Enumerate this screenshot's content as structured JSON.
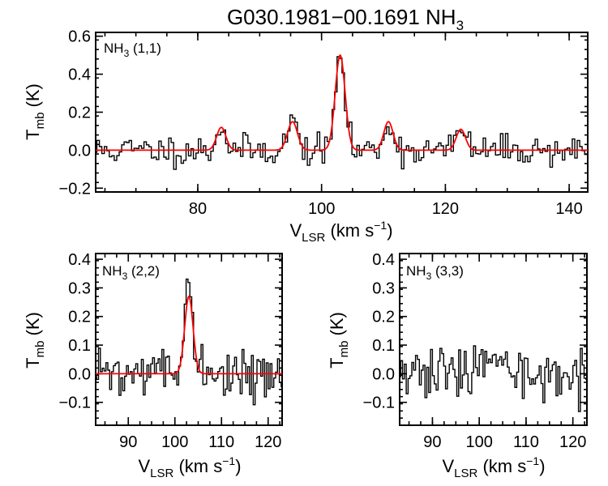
{
  "chart_data": {
    "title": "G030.1981−00.1691 NH",
    "title_sub": "3",
    "panels": [
      {
        "id": "p11",
        "type": "line",
        "label_main": "NH",
        "label_sub": "3",
        "label_rest": " (1,1)",
        "ylabel_main": "T",
        "ylabel_sub": "mb",
        "ylabel_rest": " (K)",
        "xlabel_main": "V",
        "xlabel_sub": "LSR",
        "xlabel_rest": " (km s",
        "xlabel_sup": "−1",
        "xlabel_end": ")",
        "xlim": [
          63.5,
          143
        ],
        "ylim": [
          -0.22,
          0.62
        ],
        "xticks": [
          80,
          100,
          120,
          140
        ],
        "xtick_labels": [
          "80",
          "100",
          "120",
          "140"
        ],
        "yticks": [
          -0.2,
          0.0,
          0.2,
          0.4,
          0.6
        ],
        "ytick_labels": [
          "−0.2",
          "0.0",
          "0.2",
          "0.4",
          "0.6"
        ],
        "spectrum": {
          "x_start": 63.5,
          "x_step": 0.4,
          "x_end": 143,
          "noise_rms": 0.04,
          "seed": 11,
          "components": [
            {
              "center": 83.8,
              "amp": 0.13,
              "sigma": 0.7
            },
            {
              "center": 95.3,
              "amp": 0.16,
              "sigma": 0.75
            },
            {
              "center": 103.0,
              "amp": 0.51,
              "sigma": 0.75
            },
            {
              "center": 110.8,
              "amp": 0.15,
              "sigma": 0.7
            },
            {
              "center": 122.5,
              "amp": 0.12,
              "sigma": 0.7
            }
          ]
        },
        "fit": {
          "components": [
            {
              "center": 83.8,
              "amp": 0.12,
              "sigma": 0.75
            },
            {
              "center": 95.3,
              "amp": 0.15,
              "sigma": 0.8
            },
            {
              "center": 103.0,
              "amp": 0.5,
              "sigma": 0.8
            },
            {
              "center": 110.8,
              "amp": 0.15,
              "sigma": 0.75
            },
            {
              "center": 122.5,
              "amp": 0.11,
              "sigma": 0.75
            }
          ]
        }
      },
      {
        "id": "p22",
        "type": "line",
        "label_main": "NH",
        "label_sub": "3",
        "label_rest": " (2,2)",
        "ylabel_main": "T",
        "ylabel_sub": "mb",
        "ylabel_rest": " (K)",
        "xlabel_main": "V",
        "xlabel_sub": "LSR",
        "xlabel_rest": " (km s",
        "xlabel_sup": "−1",
        "xlabel_end": ")",
        "xlim": [
          83,
          123
        ],
        "ylim": [
          -0.18,
          0.42
        ],
        "xticks": [
          90,
          100,
          110,
          120
        ],
        "xtick_labels": [
          "90",
          "100",
          "110",
          "120"
        ],
        "yticks": [
          -0.1,
          0.0,
          0.1,
          0.2,
          0.3,
          0.4
        ],
        "ytick_labels": [
          "−0.1",
          "0.0",
          "0.1",
          "0.2",
          "0.3",
          "0.4"
        ],
        "spectrum": {
          "x_start": 83,
          "x_step": 0.4,
          "x_end": 123,
          "noise_rms": 0.04,
          "seed": 22,
          "components": [
            {
              "center": 103.0,
              "amp": 0.3,
              "sigma": 0.85
            }
          ]
        },
        "fit": {
          "components": [
            {
              "center": 103.0,
              "amp": 0.27,
              "sigma": 0.9
            }
          ]
        }
      },
      {
        "id": "p33",
        "type": "line",
        "label_main": "NH",
        "label_sub": "3",
        "label_rest": " (3,3)",
        "ylabel_main": "T",
        "ylabel_sub": "mb",
        "ylabel_rest": " (K)",
        "xlabel_main": "V",
        "xlabel_sub": "LSR",
        "xlabel_rest": " (km s",
        "xlabel_sup": "−1",
        "xlabel_end": ")",
        "xlim": [
          83,
          123
        ],
        "ylim": [
          -0.18,
          0.42
        ],
        "xticks": [
          90,
          100,
          110,
          120
        ],
        "xtick_labels": [
          "90",
          "100",
          "110",
          "120"
        ],
        "yticks": [
          -0.1,
          0.0,
          0.1,
          0.2,
          0.3,
          0.4
        ],
        "ytick_labels": [
          "−0.1",
          "0.0",
          "0.1",
          "0.2",
          "0.3",
          "0.4"
        ],
        "spectrum": {
          "x_start": 83,
          "x_step": 0.4,
          "x_end": 123,
          "noise_rms": 0.045,
          "seed": 33,
          "components": [
            {
              "center": 102.2,
              "amp": 0.08,
              "sigma": 0.9
            }
          ]
        },
        "fit": null
      }
    ]
  }
}
